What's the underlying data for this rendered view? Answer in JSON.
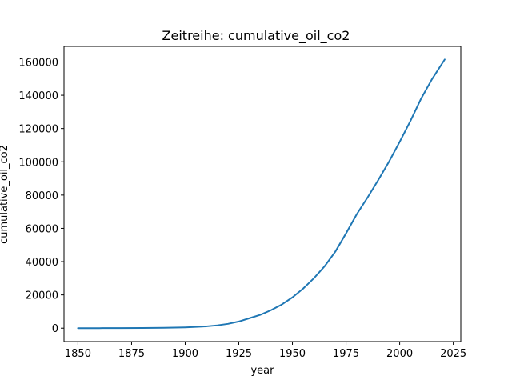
{
  "chart_data": {
    "type": "line",
    "title": "Zeitreihe: cumulative_oil_co2",
    "xlabel": "year",
    "ylabel": "cumulative_oil_co2",
    "xlim": [
      1843.5,
      2028.5
    ],
    "ylim": [
      -8065,
      169370
    ],
    "xticks": [
      1850,
      1875,
      1900,
      1925,
      1950,
      1975,
      2000,
      2025
    ],
    "yticks": [
      0,
      20000,
      40000,
      60000,
      80000,
      100000,
      120000,
      140000,
      160000
    ],
    "grid": false,
    "legend": "none",
    "line_color": "#1f77b4",
    "series": [
      {
        "x": [
          1850,
          1860,
          1870,
          1880,
          1890,
          1900,
          1905,
          1910,
          1915,
          1920,
          1925,
          1930,
          1935,
          1940,
          1945,
          1950,
          1955,
          1960,
          1965,
          1970,
          1975,
          1980,
          1985,
          1990,
          1995,
          2000,
          2005,
          2010,
          2015,
          2021
        ],
        "y": [
          0,
          20,
          60,
          120,
          250,
          500,
          750,
          1100,
          1700,
          2600,
          4000,
          6000,
          8000,
          10800,
          14200,
          18500,
          23800,
          30000,
          37200,
          46000,
          57000,
          68500,
          78500,
          89000,
          100000,
          112000,
          124500,
          138000,
          149500,
          161500
        ]
      }
    ]
  }
}
